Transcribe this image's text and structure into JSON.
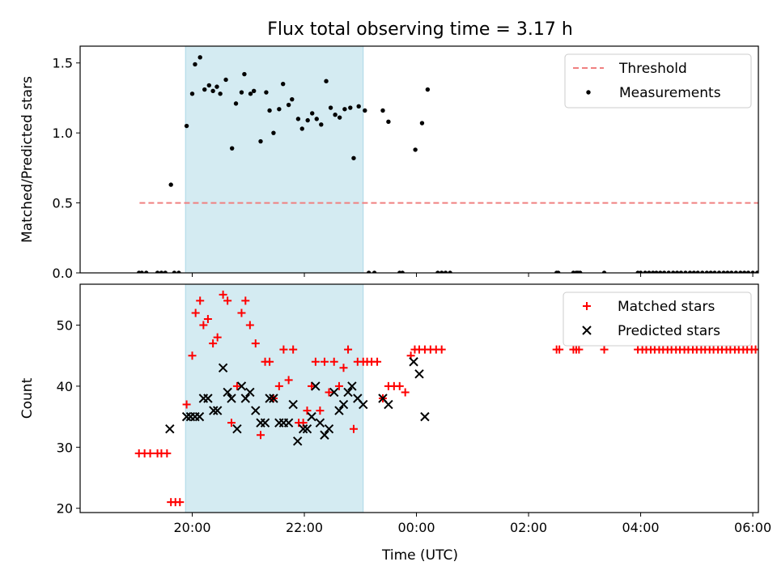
{
  "title": "Flux total observing time = 3.17 h",
  "colors": {
    "background": "#ffffff",
    "shade": "#add8e6",
    "threshold": "#f08080",
    "measurements": "#000000",
    "matched": "#ff0000",
    "predicted": "#000000"
  },
  "x_axis": {
    "label": "Time (UTC)",
    "ticks": [
      "20:00",
      "22:00",
      "00:00",
      "02:00",
      "04:00",
      "06:00"
    ]
  },
  "chart_data": [
    {
      "type": "scatter",
      "ylabel": "Matched/Predicted stars",
      "xlim_hours": [
        18.0,
        30.1
      ],
      "ylim": [
        0.0,
        1.62
      ],
      "yticks": [
        "0.0",
        "0.5",
        "1.0",
        "1.5"
      ],
      "shaded_interval_hours": [
        19.88,
        23.05
      ],
      "legend_position": "top-right",
      "threshold": {
        "name": "Threshold",
        "value": 0.5,
        "x_range_hours": [
          19.06,
          30.45
        ]
      },
      "series": [
        {
          "name": "Measurements",
          "marker": "dot",
          "points": [
            [
              19.05,
              0
            ],
            [
              19.1,
              0
            ],
            [
              19.18,
              0
            ],
            [
              19.38,
              0
            ],
            [
              19.45,
              0
            ],
            [
              19.52,
              0
            ],
            [
              19.68,
              0
            ],
            [
              19.76,
              0
            ],
            [
              19.62,
              0.63
            ],
            [
              19.9,
              1.05
            ],
            [
              20.0,
              1.28
            ],
            [
              20.05,
              1.49
            ],
            [
              20.14,
              1.54
            ],
            [
              20.22,
              1.31
            ],
            [
              20.3,
              1.34
            ],
            [
              20.37,
              1.3
            ],
            [
              20.44,
              1.33
            ],
            [
              20.5,
              1.28
            ],
            [
              20.6,
              1.38
            ],
            [
              20.71,
              0.89
            ],
            [
              20.78,
              1.21
            ],
            [
              20.88,
              1.29
            ],
            [
              20.93,
              1.42
            ],
            [
              21.04,
              1.28
            ],
            [
              21.1,
              1.3
            ],
            [
              21.22,
              0.94
            ],
            [
              21.32,
              1.29
            ],
            [
              21.38,
              1.16
            ],
            [
              21.45,
              1.0
            ],
            [
              21.55,
              1.17
            ],
            [
              21.62,
              1.35
            ],
            [
              21.72,
              1.2
            ],
            [
              21.78,
              1.24
            ],
            [
              21.89,
              1.1
            ],
            [
              21.96,
              1.03
            ],
            [
              22.06,
              1.09
            ],
            [
              22.14,
              1.14
            ],
            [
              22.22,
              1.1
            ],
            [
              22.3,
              1.06
            ],
            [
              22.39,
              1.37
            ],
            [
              22.47,
              1.18
            ],
            [
              22.55,
              1.13
            ],
            [
              22.63,
              1.11
            ],
            [
              22.72,
              1.17
            ],
            [
              22.82,
              1.18
            ],
            [
              22.88,
              0.82
            ],
            [
              22.97,
              1.19
            ],
            [
              23.08,
              1.16
            ],
            [
              23.15,
              0
            ],
            [
              23.25,
              0
            ],
            [
              23.4,
              1.16
            ],
            [
              23.5,
              1.08
            ],
            [
              23.7,
              0
            ],
            [
              23.75,
              0
            ],
            [
              23.98,
              0.88
            ],
            [
              24.1,
              1.07
            ],
            [
              24.2,
              1.31
            ],
            [
              24.38,
              0
            ],
            [
              24.45,
              0
            ],
            [
              24.52,
              0
            ],
            [
              24.6,
              0
            ],
            [
              26.5,
              0
            ],
            [
              26.53,
              0
            ],
            [
              26.8,
              0
            ],
            [
              26.85,
              0
            ],
            [
              26.88,
              0
            ],
            [
              26.92,
              0
            ],
            [
              27.35,
              0
            ],
            [
              27.95,
              0
            ],
            [
              28.0,
              0
            ],
            [
              28.08,
              0
            ],
            [
              28.15,
              0
            ],
            [
              28.22,
              0
            ],
            [
              28.28,
              0
            ],
            [
              28.35,
              0
            ],
            [
              28.42,
              0
            ],
            [
              28.5,
              0
            ],
            [
              28.58,
              0
            ],
            [
              28.65,
              0
            ],
            [
              28.72,
              0
            ],
            [
              28.8,
              0
            ],
            [
              28.88,
              0
            ],
            [
              28.95,
              0
            ],
            [
              29.02,
              0
            ],
            [
              29.1,
              0
            ],
            [
              29.18,
              0
            ],
            [
              29.25,
              0
            ],
            [
              29.32,
              0
            ],
            [
              29.4,
              0
            ],
            [
              29.48,
              0
            ],
            [
              29.55,
              0
            ],
            [
              29.62,
              0
            ],
            [
              29.7,
              0
            ],
            [
              29.78,
              0
            ],
            [
              29.85,
              0
            ],
            [
              29.92,
              0
            ],
            [
              30.0,
              0
            ],
            [
              30.08,
              0
            ],
            [
              30.15,
              0
            ],
            [
              30.22,
              0
            ],
            [
              30.3,
              0
            ],
            [
              30.38,
              0
            ],
            [
              30.45,
              0
            ]
          ]
        }
      ]
    },
    {
      "type": "scatter",
      "ylabel": "Count",
      "xlim_hours": [
        18.0,
        30.1
      ],
      "ylim": [
        19.3,
        56.7
      ],
      "yticks": [
        "20",
        "30",
        "40",
        "50"
      ],
      "shaded_interval_hours": [
        19.88,
        23.05
      ],
      "legend_position": "top-right",
      "series": [
        {
          "name": "Matched stars",
          "marker": "plus",
          "points": [
            [
              19.05,
              29
            ],
            [
              19.15,
              29
            ],
            [
              19.25,
              29
            ],
            [
              19.38,
              29
            ],
            [
              19.45,
              29
            ],
            [
              19.55,
              29
            ],
            [
              19.62,
              21
            ],
            [
              19.7,
              21
            ],
            [
              19.78,
              21
            ],
            [
              19.9,
              37
            ],
            [
              20.0,
              45
            ],
            [
              20.06,
              52
            ],
            [
              20.14,
              54
            ],
            [
              20.2,
              50
            ],
            [
              20.28,
              51
            ],
            [
              20.37,
              47
            ],
            [
              20.45,
              48
            ],
            [
              20.55,
              55
            ],
            [
              20.63,
              54
            ],
            [
              20.7,
              34
            ],
            [
              20.8,
              40
            ],
            [
              20.88,
              52
            ],
            [
              20.95,
              54
            ],
            [
              21.03,
              50
            ],
            [
              21.13,
              47
            ],
            [
              21.22,
              32
            ],
            [
              21.3,
              44
            ],
            [
              21.38,
              44
            ],
            [
              21.45,
              38
            ],
            [
              21.55,
              40
            ],
            [
              21.63,
              46
            ],
            [
              21.72,
              41
            ],
            [
              21.8,
              46
            ],
            [
              21.9,
              34
            ],
            [
              21.98,
              34
            ],
            [
              22.05,
              36
            ],
            [
              22.13,
              40
            ],
            [
              22.2,
              44
            ],
            [
              22.28,
              36
            ],
            [
              22.36,
              44
            ],
            [
              22.44,
              39
            ],
            [
              22.53,
              44
            ],
            [
              22.62,
              40
            ],
            [
              22.7,
              43
            ],
            [
              22.78,
              46
            ],
            [
              22.88,
              33
            ],
            [
              22.95,
              44
            ],
            [
              23.05,
              44
            ],
            [
              23.12,
              44
            ],
            [
              23.2,
              44
            ],
            [
              23.3,
              44
            ],
            [
              23.4,
              38
            ],
            [
              23.5,
              40
            ],
            [
              23.6,
              40
            ],
            [
              23.7,
              40
            ],
            [
              23.8,
              39
            ],
            [
              23.9,
              45
            ],
            [
              23.97,
              46
            ],
            [
              24.05,
              46
            ],
            [
              24.15,
              46
            ],
            [
              24.25,
              46
            ],
            [
              24.35,
              46
            ],
            [
              24.45,
              46
            ],
            [
              26.5,
              46
            ],
            [
              26.55,
              46
            ],
            [
              26.8,
              46
            ],
            [
              26.85,
              46
            ],
            [
              26.9,
              46
            ],
            [
              27.35,
              46
            ],
            [
              27.95,
              46
            ],
            [
              28.03,
              46
            ],
            [
              28.1,
              46
            ],
            [
              28.18,
              46
            ],
            [
              28.25,
              46
            ],
            [
              28.33,
              46
            ],
            [
              28.4,
              46
            ],
            [
              28.48,
              46
            ],
            [
              28.55,
              46
            ],
            [
              28.63,
              46
            ],
            [
              28.7,
              46
            ],
            [
              28.78,
              46
            ],
            [
              28.85,
              46
            ],
            [
              28.93,
              46
            ],
            [
              29.0,
              46
            ],
            [
              29.08,
              46
            ],
            [
              29.15,
              46
            ],
            [
              29.23,
              46
            ],
            [
              29.3,
              46
            ],
            [
              29.38,
              46
            ],
            [
              29.45,
              46
            ],
            [
              29.53,
              46
            ],
            [
              29.6,
              46
            ],
            [
              29.68,
              46
            ],
            [
              29.75,
              46
            ],
            [
              29.83,
              46
            ],
            [
              29.9,
              46
            ],
            [
              29.98,
              46
            ],
            [
              30.05,
              46
            ],
            [
              30.13,
              46
            ],
            [
              30.2,
              46
            ],
            [
              30.28,
              46
            ],
            [
              30.35,
              46
            ],
            [
              30.43,
              46
            ],
            [
              30.5,
              46
            ]
          ]
        },
        {
          "name": "Predicted stars",
          "marker": "x",
          "points": [
            [
              19.6,
              33
            ],
            [
              19.9,
              35
            ],
            [
              19.97,
              35
            ],
            [
              20.05,
              35
            ],
            [
              20.13,
              35
            ],
            [
              20.2,
              38
            ],
            [
              20.28,
              38
            ],
            [
              20.38,
              36
            ],
            [
              20.45,
              36
            ],
            [
              20.55,
              43
            ],
            [
              20.63,
              39
            ],
            [
              20.7,
              38
            ],
            [
              20.8,
              33
            ],
            [
              20.88,
              40
            ],
            [
              20.95,
              38
            ],
            [
              21.03,
              39
            ],
            [
              21.13,
              36
            ],
            [
              21.22,
              34
            ],
            [
              21.3,
              34
            ],
            [
              21.38,
              38
            ],
            [
              21.45,
              38
            ],
            [
              21.55,
              34
            ],
            [
              21.63,
              34
            ],
            [
              21.72,
              34
            ],
            [
              21.8,
              37
            ],
            [
              21.88,
              31
            ],
            [
              21.98,
              33
            ],
            [
              22.05,
              33
            ],
            [
              22.13,
              35
            ],
            [
              22.2,
              40
            ],
            [
              22.28,
              34
            ],
            [
              22.36,
              32
            ],
            [
              22.44,
              33
            ],
            [
              22.53,
              39
            ],
            [
              22.62,
              36
            ],
            [
              22.7,
              37
            ],
            [
              22.78,
              39
            ],
            [
              22.85,
              40
            ],
            [
              22.95,
              38
            ],
            [
              23.05,
              37
            ],
            [
              23.4,
              38
            ],
            [
              23.5,
              37
            ],
            [
              23.95,
              44
            ],
            [
              24.05,
              42
            ],
            [
              24.15,
              35
            ]
          ]
        }
      ]
    }
  ]
}
